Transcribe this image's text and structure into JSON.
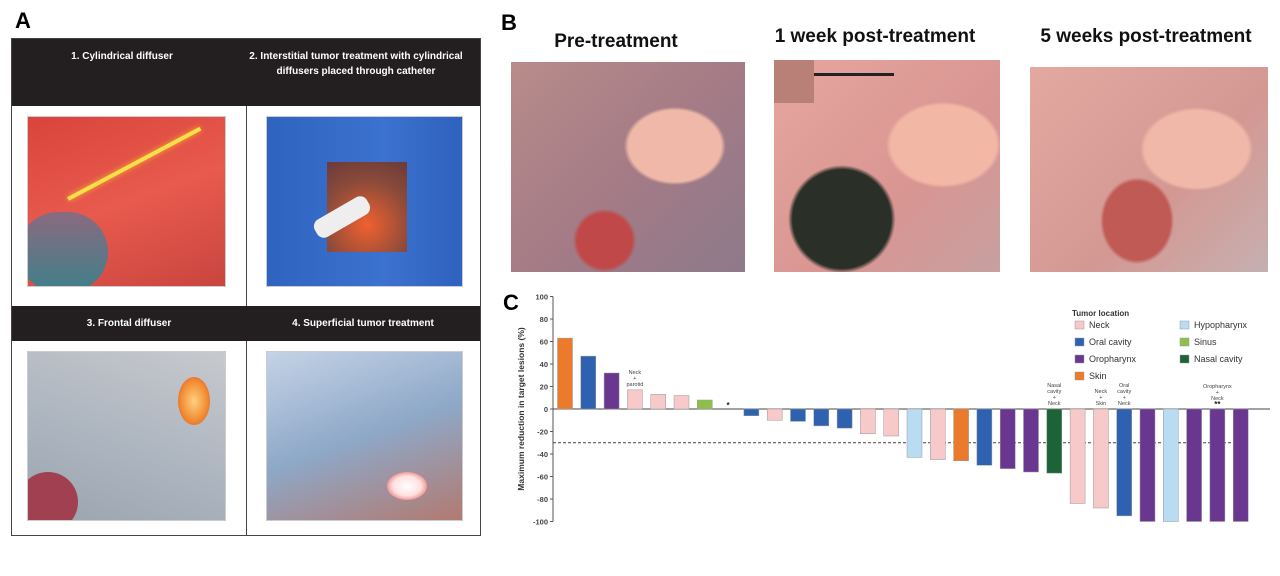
{
  "panel_a": {
    "label": "A",
    "cells": [
      {
        "title": "1. Cylindrical diffuser"
      },
      {
        "title": "2. Interstitial tumor treatment with cylindrical diffusers placed through catheter"
      },
      {
        "title": "3. Frontal diffuser"
      },
      {
        "title": "4. Superficial tumor treatment"
      }
    ]
  },
  "panel_b": {
    "label": "B",
    "photos": [
      {
        "title": "Pre-treatment"
      },
      {
        "title": "1 week post-treatment"
      },
      {
        "title": "5 weeks post-treatment"
      }
    ]
  },
  "panel_c": {
    "label": "C"
  },
  "chart_data": {
    "type": "bar",
    "title": "",
    "xlabel": "",
    "ylabel": "Maximum reduction in target lesions (%)",
    "ylim": [
      -100,
      100
    ],
    "yticks": [
      "100",
      "80",
      "60",
      "40",
      "20",
      "0",
      "-20",
      "-40",
      "-60",
      "-80",
      "-100"
    ],
    "reference_line": -30,
    "legend_title": "Tumor location",
    "legend_placement": "top-right",
    "legend": [
      {
        "name": "Neck",
        "color": "#f7c9c9"
      },
      {
        "name": "Oral cavity",
        "color": "#2e62b0"
      },
      {
        "name": "Oropharynx",
        "color": "#6a3790"
      },
      {
        "name": "Skin",
        "color": "#ec7a2c"
      },
      {
        "name": "Hypopharynx",
        "color": "#b9dcf2"
      },
      {
        "name": "Sinus",
        "color": "#8cc04b"
      },
      {
        "name": "Nasal cavity",
        "color": "#1e6338"
      }
    ],
    "bars": [
      {
        "location": "Skin",
        "value": 63
      },
      {
        "location": "Oral cavity",
        "value": 47
      },
      {
        "location": "Oropharynx",
        "value": 32
      },
      {
        "location": "Neck",
        "value": 17,
        "annotation": [
          "Neck",
          "+",
          "parotid"
        ]
      },
      {
        "location": "Neck",
        "value": 13
      },
      {
        "location": "Neck",
        "value": 12
      },
      {
        "location": "Sinus",
        "value": 8
      },
      {
        "location": "",
        "value": 0,
        "marker": "*"
      },
      {
        "location": "Oral cavity",
        "value": -6
      },
      {
        "location": "Neck",
        "value": -10
      },
      {
        "location": "Oral cavity",
        "value": -11
      },
      {
        "location": "Oral cavity",
        "value": -15
      },
      {
        "location": "Oral cavity",
        "value": -17
      },
      {
        "location": "Neck",
        "value": -22
      },
      {
        "location": "Neck",
        "value": -24
      },
      {
        "location": "Hypopharynx",
        "value": -43
      },
      {
        "location": "Neck",
        "value": -45
      },
      {
        "location": "Skin",
        "value": -46
      },
      {
        "location": "Oral cavity",
        "value": -50
      },
      {
        "location": "Oropharynx",
        "value": -53
      },
      {
        "location": "Oropharynx",
        "value": -56
      },
      {
        "location": "Nasal cavity",
        "value": -57,
        "annotation": [
          "Nasal",
          "cavity",
          "+",
          "Neck"
        ]
      },
      {
        "location": "Neck",
        "value": -84
      },
      {
        "location": "Neck",
        "value": -88,
        "annotation": [
          "Neck",
          "+",
          "Skin"
        ]
      },
      {
        "location": "Oral cavity",
        "value": -95,
        "annotation": [
          "Oral",
          "cavity",
          "+",
          "Neck"
        ]
      },
      {
        "location": "Oropharynx",
        "value": -100
      },
      {
        "location": "Hypopharynx",
        "value": -100
      },
      {
        "location": "Oropharynx",
        "value": -100
      },
      {
        "location": "Oropharynx",
        "value": -100,
        "annotation": [
          "Oropharynx",
          "+",
          "Neck"
        ],
        "marker": "**"
      },
      {
        "location": "Oropharynx",
        "value": -100
      }
    ]
  }
}
